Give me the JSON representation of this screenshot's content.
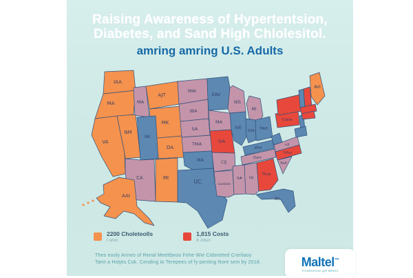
{
  "colors": {
    "orange": "#f5924e",
    "mauve": "#c495aa",
    "blue": "#5c88b2",
    "red": "#e8483b",
    "background": "#cde8e5",
    "stroke": "#30507a",
    "label": "#2e3a5e",
    "title_white": "#ffffff",
    "title_blue": "#1769a6",
    "footnote_teal": "#58a0a9",
    "logo_blue": "#1273b8"
  },
  "title": {
    "line1": "Raising Awareness of Hypertentsion,",
    "line2": "Diabetes, and Sand High Chlolesitol.",
    "line3": "amring amring U.S. Adults"
  },
  "map": {
    "states": [
      {
        "id": "wa",
        "label": "IAA",
        "color": "orange"
      },
      {
        "id": "or",
        "label": "MA",
        "color": "orange"
      },
      {
        "id": "ca",
        "label": "VA",
        "color": "orange"
      },
      {
        "id": "nv",
        "label": "NM",
        "color": "orange"
      },
      {
        "id": "id",
        "label": "MA",
        "color": "mauve"
      },
      {
        "id": "mt",
        "label": "AJT",
        "color": "orange"
      },
      {
        "id": "wy",
        "label": "MK",
        "color": "orange"
      },
      {
        "id": "ut",
        "label": "IAI",
        "color": "blue"
      },
      {
        "id": "co",
        "label": "DA",
        "color": "orange"
      },
      {
        "id": "az",
        "label": "CA",
        "color": "mauve"
      },
      {
        "id": "nm",
        "label": "MI",
        "color": "orange"
      },
      {
        "id": "nd",
        "label": "MAI",
        "color": "mauve"
      },
      {
        "id": "sd",
        "label": "IBA",
        "color": "mauve"
      },
      {
        "id": "ne",
        "label": "SA",
        "color": "mauve"
      },
      {
        "id": "ks",
        "label": "TMA",
        "color": "mauve"
      },
      {
        "id": "ok",
        "label": "MA",
        "color": "blue"
      },
      {
        "id": "tx",
        "label": "UC.",
        "color": "blue"
      },
      {
        "id": "mn",
        "label": "EAV",
        "color": "blue"
      },
      {
        "id": "ia",
        "label": "MA",
        "color": "mauve"
      },
      {
        "id": "mo",
        "label": "SIA",
        "color": "red"
      },
      {
        "id": "ar",
        "label": "CIJ",
        "color": "mauve"
      },
      {
        "id": "la",
        "label": "Looloies",
        "color": "mauve"
      },
      {
        "id": "wi",
        "label": "NlS",
        "color": "mauve"
      },
      {
        "id": "il",
        "label": "IVE",
        "color": "blue"
      },
      {
        "id": "mi",
        "label": "MI",
        "color": "mauve"
      },
      {
        "id": "in",
        "label": "IO6",
        "color": "blue"
      },
      {
        "id": "oh",
        "label": "TAVI",
        "color": "blue"
      },
      {
        "id": "ky",
        "label": "WVI",
        "color": "blue"
      },
      {
        "id": "tn",
        "label": "Darr",
        "color": "mauve"
      },
      {
        "id": "ms",
        "label": "S#",
        "color": "mauve"
      },
      {
        "id": "al",
        "label": "IzJ",
        "color": "mauve"
      },
      {
        "id": "ga",
        "label": "TIvia",
        "color": "red"
      },
      {
        "id": "sc",
        "label": "Rull",
        "color": "mauve"
      },
      {
        "id": "nc",
        "label": "IVIvv",
        "color": "red"
      },
      {
        "id": "va",
        "label": "+Jr",
        "color": "mauve"
      },
      {
        "id": "wv",
        "label": "",
        "color": "blue"
      },
      {
        "id": "fl",
        "label": "IAL.",
        "color": "blue"
      },
      {
        "id": "pa",
        "label": "Ciaiia",
        "color": "red"
      },
      {
        "id": "ny",
        "label": "",
        "color": "red"
      },
      {
        "id": "nj",
        "label": "",
        "color": "blue"
      },
      {
        "id": "md",
        "label": "",
        "color": "blue"
      },
      {
        "id": "vt",
        "label": "",
        "color": "blue"
      },
      {
        "id": "nh",
        "label": "",
        "color": "red"
      },
      {
        "id": "mast",
        "label": "",
        "color": "red"
      },
      {
        "id": "ctri",
        "label": "",
        "color": "red"
      },
      {
        "id": "me",
        "label": "AVI",
        "color": "orange"
      },
      {
        "id": "ak",
        "label": "AAI",
        "color": "orange"
      }
    ]
  },
  "legend": {
    "items": [
      {
        "color": "orange",
        "label": "2200 Choleteolls",
        "sublabel": "I uren"
      },
      {
        "color": "red",
        "label": "1,815 Costs",
        "sublabel": "8 Jvtun"
      }
    ]
  },
  "footnote": {
    "line1": "Thes eooly Arines of Renal Meeltbeoo Fehe Wie Cidoretted Crerliaoy",
    "line2": "Tamt a Hotjes Cok. Cending to Terepees of fy-penting Nore sem by 2018."
  },
  "logo": {
    "name": "Maltel",
    "mark": "™",
    "tagline": "Trealtvenne gel Mlters"
  }
}
